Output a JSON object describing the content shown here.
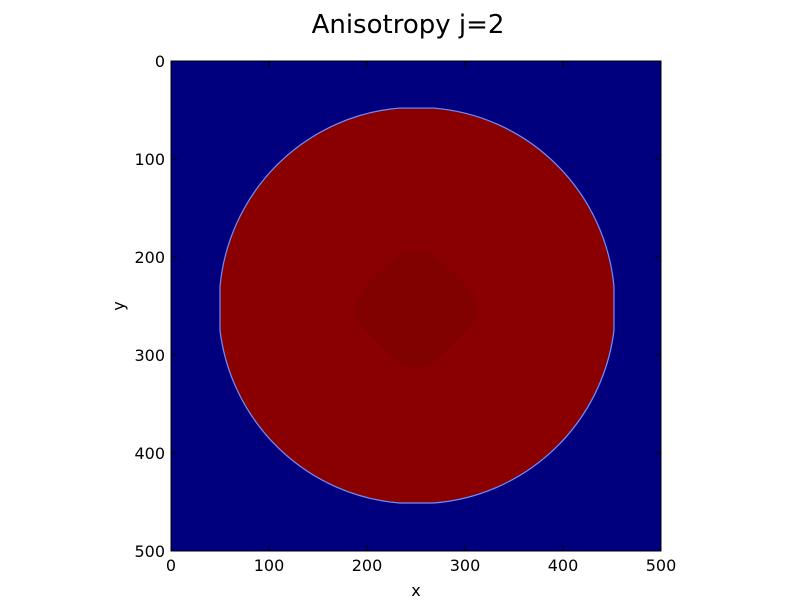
{
  "chart_data": {
    "type": "heatmap",
    "title": "Anisotropy j=2",
    "xlabel": "x",
    "ylabel": "y",
    "xlim": [
      0,
      500
    ],
    "ylim": [
      500,
      0
    ],
    "y_axis_inverted": true,
    "xticks": [
      0,
      100,
      200,
      300,
      400,
      500
    ],
    "yticks": [
      0,
      100,
      200,
      300,
      400,
      500
    ],
    "grid": false,
    "colorbar": false,
    "colormap": "jet",
    "colors": {
      "background": "#00007f",
      "interior": "#8a0000",
      "core": "#7f0000",
      "edge": "#6f8fff"
    },
    "shape": {
      "kind": "anisotropic disk",
      "center": [
        250,
        250
      ],
      "x_range": [
        50,
        452
      ],
      "y_range": [
        48,
        451
      ],
      "flat_sides": {
        "top": [
          233,
          268
        ],
        "bottom": [
          233,
          268
        ],
        "left": [
          230,
          275
        ],
        "right": [
          230,
          275
        ]
      }
    },
    "core": {
      "kind": "rounded square (rotated 45°)",
      "center": [
        250,
        253
      ],
      "x_range": [
        175,
        325
      ],
      "y_range": [
        178,
        323
      ]
    }
  }
}
